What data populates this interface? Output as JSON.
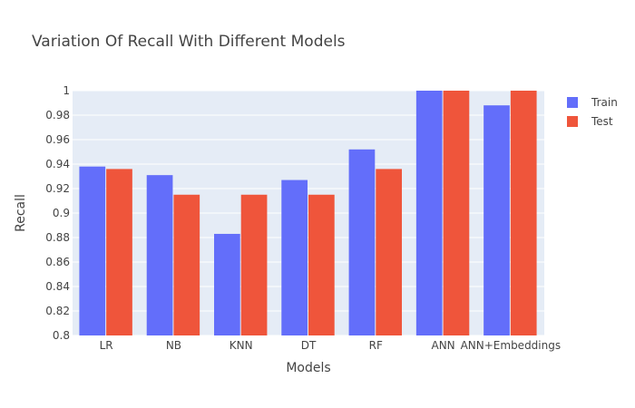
{
  "chart_data": {
    "type": "bar",
    "title": "Variation Of Recall With Different Models",
    "xlabel": "Models",
    "ylabel": "Recall",
    "ylim": [
      0.8,
      1.0
    ],
    "yticks": [
      "0.8",
      "0.82",
      "0.84",
      "0.86",
      "0.88",
      "0.9",
      "0.92",
      "0.94",
      "0.96",
      "0.98",
      "1"
    ],
    "categories": [
      "LR",
      "NB",
      "KNN",
      "DT",
      "RF",
      "ANN",
      "ANN+Embeddings"
    ],
    "series": [
      {
        "name": "Train",
        "color": "#636efa",
        "values": [
          0.938,
          0.931,
          0.883,
          0.927,
          0.952,
          1.0,
          0.988
        ]
      },
      {
        "name": "Test",
        "color": "#ef553b",
        "values": [
          0.936,
          0.915,
          0.915,
          0.915,
          0.936,
          1.0,
          1.0
        ]
      }
    ],
    "grid": true,
    "legend": "top-right",
    "plot_background": "#e5ecf6"
  }
}
